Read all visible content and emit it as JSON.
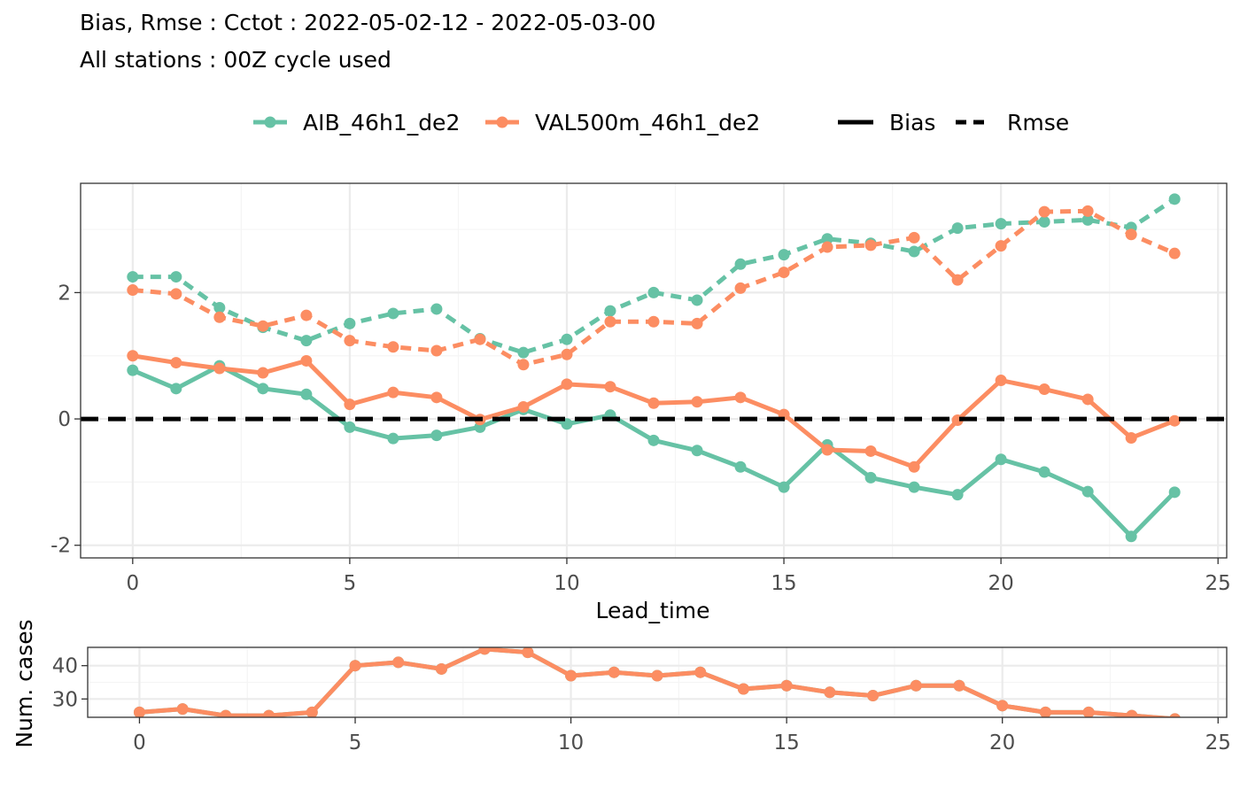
{
  "title": "Bias, Rmse : Cctot : 2022-05-02-12 - 2022-05-03-00",
  "subtitle": "All stations : 00Z cycle used",
  "colors": {
    "aib": "#66c2a5",
    "val": "#fc8d62",
    "zero_line": "#000000",
    "panel_border": "#333333",
    "grid_major": "#ebebeb",
    "grid_minor": "#f5f5f5",
    "tick_text": "#4d4d4d"
  },
  "legend": {
    "models": [
      {
        "name": "AIB_46h1_de2",
        "color": "#66c2a5"
      },
      {
        "name": "VAL500m_46h1_de2",
        "color": "#fc8d62"
      }
    ],
    "scores": [
      {
        "name": "Bias",
        "linetype": "solid"
      },
      {
        "name": "Rmse",
        "linetype": "dashed"
      }
    ]
  },
  "chart_data": [
    {
      "type": "line",
      "xlabel": "Lead_time",
      "ylabel": "",
      "xlim": [
        -1.2,
        25.2
      ],
      "ylim": [
        -2.2,
        3.73
      ],
      "x_ticks": [
        0,
        5,
        10,
        15,
        20,
        25
      ],
      "y_ticks": [
        -2,
        0,
        2
      ],
      "x": [
        0,
        1,
        2,
        3,
        4,
        5,
        6,
        7,
        8,
        9,
        10,
        11,
        12,
        13,
        14,
        15,
        16,
        17,
        18,
        19,
        20,
        21,
        22,
        23,
        24
      ],
      "hline": 0,
      "grid": true,
      "series": [
        {
          "model": "AIB_46h1_de2",
          "score": "Bias",
          "color": "#66c2a5",
          "dash": false,
          "values": [
            0.77,
            0.48,
            0.84,
            0.48,
            0.39,
            -0.13,
            -0.31,
            -0.26,
            -0.13,
            0.15,
            -0.08,
            0.06,
            -0.34,
            -0.5,
            -0.76,
            -1.08,
            -0.41,
            -0.93,
            -1.08,
            -1.2,
            -0.64,
            -0.84,
            -1.15,
            -1.86,
            -1.16
          ]
        },
        {
          "model": "VAL500m_46h1_de2",
          "score": "Bias",
          "color": "#fc8d62",
          "dash": false,
          "values": [
            1.0,
            0.89,
            0.8,
            0.73,
            0.92,
            0.23,
            0.42,
            0.34,
            -0.01,
            0.19,
            0.55,
            0.51,
            0.25,
            0.27,
            0.34,
            0.07,
            -0.49,
            -0.51,
            -0.76,
            -0.02,
            0.61,
            0.47,
            0.31,
            -0.3,
            -0.03
          ]
        },
        {
          "model": "AIB_46h1_de2",
          "score": "Rmse",
          "color": "#66c2a5",
          "dash": true,
          "values": [
            2.25,
            2.25,
            1.76,
            1.45,
            1.24,
            1.51,
            1.67,
            1.74,
            1.27,
            1.05,
            1.26,
            1.71,
            2.0,
            1.88,
            2.45,
            2.6,
            2.85,
            2.78,
            2.65,
            3.02,
            3.09,
            3.12,
            3.15,
            3.03,
            3.48
          ]
        },
        {
          "model": "VAL500m_46h1_de2",
          "score": "Rmse",
          "color": "#fc8d62",
          "dash": true,
          "values": [
            2.04,
            1.98,
            1.61,
            1.47,
            1.64,
            1.24,
            1.14,
            1.08,
            1.26,
            0.86,
            1.02,
            1.54,
            1.54,
            1.51,
            2.07,
            2.32,
            2.72,
            2.75,
            2.87,
            2.2,
            2.74,
            3.28,
            3.29,
            2.92,
            2.62
          ]
        }
      ]
    },
    {
      "type": "line",
      "xlabel": "",
      "ylabel": "Num. cases",
      "xlim": [
        -1.2,
        25.2
      ],
      "ylim": [
        24.5,
        45.5
      ],
      "x_ticks": [
        0,
        5,
        10,
        15,
        20,
        25
      ],
      "y_ticks": [
        30,
        40
      ],
      "x": [
        0,
        1,
        2,
        3,
        4,
        5,
        6,
        7,
        8,
        9,
        10,
        11,
        12,
        13,
        14,
        15,
        16,
        17,
        18,
        19,
        20,
        21,
        22,
        23,
        24
      ],
      "grid": true,
      "series": [
        {
          "model": "AIB_46h1_de2",
          "color": "#66c2a5",
          "values": [
            26,
            27,
            25,
            25,
            26,
            40,
            41,
            39,
            45,
            44,
            37,
            38,
            37,
            38,
            33,
            34,
            32,
            31,
            34,
            34,
            28,
            26,
            26,
            25,
            24
          ]
        },
        {
          "model": "VAL500m_46h1_de2",
          "color": "#fc8d62",
          "values": [
            26,
            27,
            25,
            25,
            26,
            40,
            41,
            39,
            45,
            44,
            37,
            38,
            37,
            38,
            33,
            34,
            32,
            31,
            34,
            34,
            28,
            26,
            26,
            25,
            24
          ]
        }
      ]
    }
  ]
}
